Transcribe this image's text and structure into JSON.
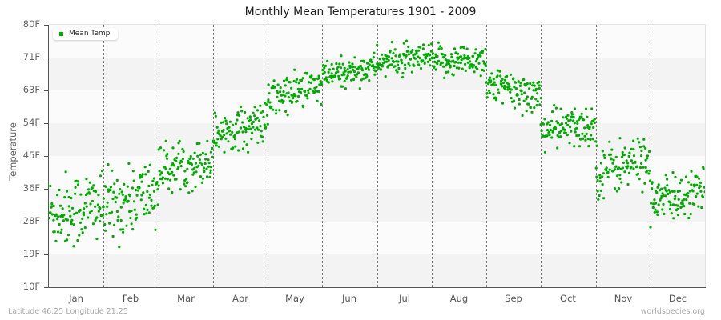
{
  "title": "Monthly Mean Temperatures 1901 - 2009",
  "legend": {
    "label": "Mean Temp",
    "color": "#00aa00"
  },
  "footer": {
    "location": "Latitude 46.25 Longitude 21.25",
    "source": "worldspecies.org"
  },
  "chart_data": {
    "type": "scatter",
    "title": "Monthly Mean Temperatures 1901 - 2009",
    "xlabel": "",
    "ylabel": "Temperature",
    "categories": [
      "Jan",
      "Feb",
      "Mar",
      "Apr",
      "May",
      "Jun",
      "Jul",
      "Aug",
      "Sep",
      "Oct",
      "Nov",
      "Dec"
    ],
    "yticks": [
      "10F",
      "19F",
      "28F",
      "36F",
      "45F",
      "54F",
      "63F",
      "71F",
      "80F"
    ],
    "ylim": [
      10,
      80
    ],
    "grid": {
      "horizontal_bands": true,
      "vertical_dashed_month_separators": true
    },
    "legend_position": "top-left",
    "years": [
      1901,
      2009
    ],
    "points_per_month": 109,
    "series": [
      {
        "name": "Mean Temp",
        "color": "#00aa00",
        "monthly_summary": [
          {
            "month": "Jan",
            "mean": 31,
            "min": 15,
            "max": 41,
            "trend_start": 30,
            "trend_end": 32
          },
          {
            "month": "Feb",
            "mean": 33,
            "min": 18,
            "max": 43,
            "trend_start": 31,
            "trend_end": 36
          },
          {
            "month": "Mar",
            "mean": 42,
            "min": 33,
            "max": 49,
            "trend_start": 41,
            "trend_end": 44
          },
          {
            "month": "Apr",
            "mean": 52,
            "min": 46,
            "max": 60,
            "trend_start": 51,
            "trend_end": 54
          },
          {
            "month": "May",
            "mean": 61,
            "min": 54,
            "max": 68,
            "trend_start": 60,
            "trend_end": 64
          },
          {
            "month": "Jun",
            "mean": 67,
            "min": 63,
            "max": 73,
            "trend_start": 66,
            "trend_end": 69
          },
          {
            "month": "Jul",
            "mean": 71,
            "min": 66,
            "max": 76,
            "trend_start": 70,
            "trend_end": 71
          },
          {
            "month": "Aug",
            "mean": 70,
            "min": 65,
            "max": 76,
            "trend_start": 70,
            "trend_end": 71
          },
          {
            "month": "Sep",
            "mean": 63,
            "min": 55,
            "max": 68,
            "trend_start": 64,
            "trend_end": 61
          },
          {
            "month": "Oct",
            "mean": 53,
            "min": 46,
            "max": 60,
            "trend_start": 52,
            "trend_end": 53
          },
          {
            "month": "Nov",
            "mean": 43,
            "min": 32,
            "max": 50,
            "trend_start": 41,
            "trend_end": 44
          },
          {
            "month": "Dec",
            "mean": 34,
            "min": 26,
            "max": 42,
            "trend_start": 33,
            "trend_end": 35
          }
        ]
      }
    ]
  },
  "colors": {
    "band_light": "#fbfbfb",
    "band_dark": "#f3f3f3",
    "point": "#00aa00",
    "separator": "#7a7a7a"
  }
}
